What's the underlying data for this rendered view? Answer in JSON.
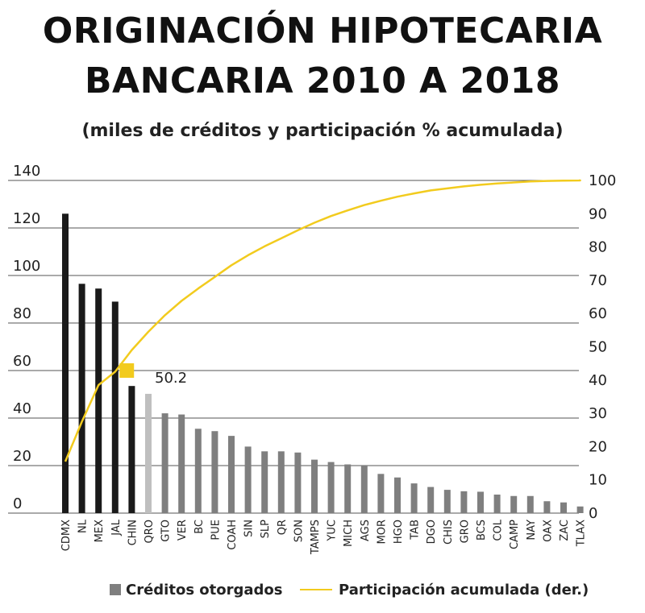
{
  "title_line1": "ORIGINACIÓN HIPOTECARIA",
  "title_line2": "BANCARIA 2010 A 2018",
  "subtitle": "(miles de créditos y participación % acumulada)",
  "chart_data": {
    "type": "bar",
    "categories": [
      "CDMX",
      "NL",
      "MEX",
      "JAL",
      "CHIN",
      "QRO",
      "GTO",
      "VER",
      "BC",
      "PUE",
      "COAH",
      "SIN",
      "SLP",
      "QR",
      "SON",
      "TAMPS",
      "YUC",
      "MICH",
      "AGS",
      "MOR",
      "HGO",
      "TAB",
      "DGO",
      "CHIS",
      "GRO",
      "BCS",
      "COL",
      "CAMP",
      "NAY",
      "OAX",
      "ZAC",
      "TLAX"
    ],
    "series": [
      {
        "name": "Créditos otorgados",
        "values": [
          126,
          96.5,
          94.5,
          89,
          53.5,
          50.2,
          42,
          41.5,
          35.5,
          34.5,
          32.5,
          28,
          26,
          26,
          25.5,
          22.5,
          21.5,
          20.5,
          20,
          16.5,
          15,
          12.5,
          11,
          9.8,
          9.2,
          9,
          7.8,
          7.2,
          7.2,
          5,
          4.5,
          2.8
        ]
      },
      {
        "name": "Participación acumulada (der.)",
        "axis": "right",
        "values": [
          15.5,
          27.5,
          38.5,
          42.5,
          49,
          54.5,
          59.5,
          63.8,
          67.5,
          71,
          74.5,
          77.5,
          80.2,
          82.6,
          85,
          87.3,
          89.3,
          91,
          92.6,
          93.9,
          95.1,
          96.1,
          97,
          97.6,
          98.2,
          98.7,
          99.1,
          99.4,
          99.7,
          99.85,
          99.95,
          100
        ]
      }
    ],
    "y_left": {
      "range": [
        0,
        140
      ],
      "ticks": [
        "0",
        "20",
        "40",
        "60",
        "80",
        "100",
        "120",
        "140"
      ]
    },
    "y_right": {
      "range": [
        0,
        100
      ],
      "ticks": [
        "0",
        "10",
        "20",
        "30",
        "40",
        "50",
        "60",
        "70",
        "80",
        "90",
        "100"
      ]
    },
    "annotation": {
      "label": "50.2",
      "category": "QRO"
    },
    "bar_colors": {
      "top5": "#1a1a1a",
      "highlight": "#bfbfbf",
      "rest": "#7f7f7f"
    },
    "line_color": "#f2cb1e",
    "marker_color": "#f2cb1e",
    "grid": true
  },
  "legend": {
    "bars_label": "Créditos otorgados",
    "line_label": "Participación acumulada (der.)"
  }
}
